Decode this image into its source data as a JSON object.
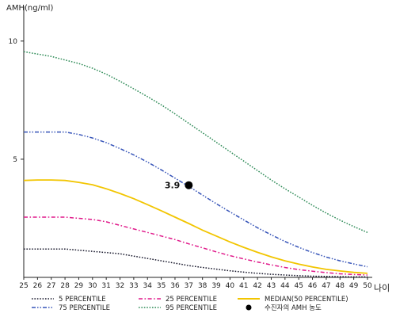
{
  "chart_data": {
    "type": "line",
    "ylabel": "AMH(ng/ml)",
    "xlabel": "나이",
    "xlim": [
      25,
      50
    ],
    "ylim": [
      0,
      11
    ],
    "x": [
      25,
      26,
      27,
      28,
      29,
      30,
      31,
      32,
      33,
      34,
      35,
      36,
      37,
      38,
      39,
      40,
      41,
      42,
      43,
      44,
      45,
      46,
      47,
      48,
      49,
      50
    ],
    "x_ticks": [
      "25",
      "26",
      "27",
      "28",
      "29",
      "30",
      "31",
      "32",
      "33",
      "34",
      "35",
      "36",
      "37",
      "38",
      "39",
      "40",
      "41",
      "42",
      "43",
      "44",
      "45",
      "46",
      "47",
      "48",
      "49",
      "50"
    ],
    "y_ticks": [
      {
        "value": 5,
        "label": "5"
      },
      {
        "value": 10,
        "label": "10"
      }
    ],
    "series": [
      {
        "name": "5 PERCENTILE",
        "color": "#1a1a2e",
        "dash": "dotted",
        "values": [
          1.2,
          1.2,
          1.2,
          1.2,
          1.15,
          1.1,
          1.05,
          1.0,
          0.9,
          0.8,
          0.7,
          0.6,
          0.5,
          0.42,
          0.35,
          0.28,
          0.22,
          0.17,
          0.13,
          0.1,
          0.07,
          0.05,
          0.04,
          0.03,
          0.02,
          0.02
        ]
      },
      {
        "name": "25 PERCENTILE",
        "color": "#e0198a",
        "dash": "dashdot",
        "values": [
          2.55,
          2.55,
          2.55,
          2.55,
          2.5,
          2.45,
          2.35,
          2.2,
          2.05,
          1.9,
          1.75,
          1.6,
          1.42,
          1.25,
          1.08,
          0.92,
          0.78,
          0.65,
          0.53,
          0.42,
          0.33,
          0.26,
          0.2,
          0.15,
          0.12,
          0.1
        ]
      },
      {
        "name": "MEDIAN(50 PERCENTILE)",
        "color": "#f2c500",
        "dash": "solid",
        "values": [
          4.1,
          4.12,
          4.12,
          4.1,
          4.02,
          3.92,
          3.75,
          3.55,
          3.33,
          3.08,
          2.82,
          2.55,
          2.28,
          2.0,
          1.75,
          1.5,
          1.27,
          1.06,
          0.87,
          0.7,
          0.56,
          0.44,
          0.34,
          0.27,
          0.21,
          0.17
        ]
      },
      {
        "name": "75 PERCENTILE",
        "color": "#3553b8",
        "dash": "dashdotdot",
        "values": [
          6.15,
          6.15,
          6.15,
          6.15,
          6.05,
          5.9,
          5.7,
          5.45,
          5.18,
          4.88,
          4.55,
          4.2,
          3.85,
          3.48,
          3.12,
          2.77,
          2.43,
          2.1,
          1.8,
          1.52,
          1.27,
          1.05,
          0.86,
          0.7,
          0.57,
          0.45
        ]
      },
      {
        "name": "95 PERCENTILE",
        "color": "#2e8b57",
        "dash": "dotted",
        "values": [
          9.55,
          9.45,
          9.35,
          9.2,
          9.05,
          8.85,
          8.6,
          8.3,
          7.98,
          7.65,
          7.3,
          6.92,
          6.52,
          6.12,
          5.72,
          5.32,
          4.92,
          4.52,
          4.12,
          3.75,
          3.4,
          3.05,
          2.72,
          2.42,
          2.15,
          1.9
        ]
      }
    ],
    "points": [
      {
        "name": "수진자의 AMH 농도",
        "x": 37,
        "y": 3.9,
        "label": "3.9",
        "color": "#000000"
      }
    ],
    "legend": {
      "position": "bottom",
      "order": [
        "5 PERCENTILE",
        "25 PERCENTILE",
        "MEDIAN(50 PERCENTILE)",
        "75 PERCENTILE",
        "95 PERCENTILE",
        "수진자의 AMH 농도"
      ]
    },
    "grid": false
  }
}
